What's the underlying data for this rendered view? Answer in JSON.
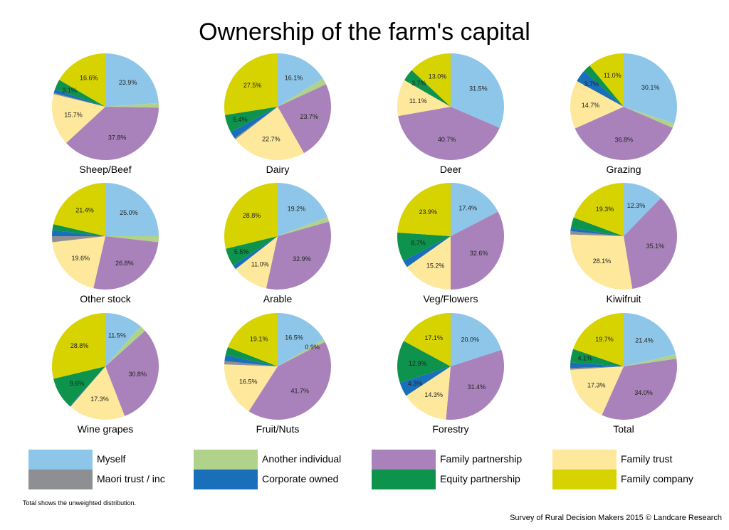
{
  "title": "Ownership of the farm's capital",
  "footnote": "Total shows the unweighted distribution.",
  "source": "Survey of Rural Decision Makers 2015 © Landcare Research",
  "legend": [
    {
      "label": "Myself",
      "color": "#8ec6ea"
    },
    {
      "label": "Another individual",
      "color": "#b1d28a"
    },
    {
      "label": "Family partnership",
      "color": "#a982bb"
    },
    {
      "label": "Family trust",
      "color": "#fde89b"
    },
    {
      "label": "Maori trust / inc",
      "color": "#8d8f92"
    },
    {
      "label": "Corporate owned",
      "color": "#1a6fba"
    },
    {
      "label": "Equity partnership",
      "color": "#0d934b"
    },
    {
      "label": "Family company",
      "color": "#d7d300"
    }
  ],
  "chart_data": [
    {
      "type": "pie",
      "title": "Sheep/Beef",
      "categories": [
        "Myself",
        "Another individual",
        "Family partnership",
        "Family trust",
        "Maori trust / inc",
        "Corporate owned",
        "Equity partnership",
        "Family company"
      ],
      "values": [
        23.9,
        1.4,
        37.8,
        15.7,
        0.4,
        1.1,
        3.1,
        16.6
      ],
      "data_labels": [
        "23.9%",
        "",
        "37.8%",
        "15.7%",
        "",
        "",
        "3.1%",
        "16.6%"
      ]
    },
    {
      "type": "pie",
      "title": "Dairy",
      "categories": [
        "Myself",
        "Another individual",
        "Family partnership",
        "Family trust",
        "Maori trust / inc",
        "Corporate owned",
        "Equity partnership",
        "Family company"
      ],
      "values": [
        16.1,
        2.0,
        23.7,
        22.7,
        0.4,
        2.2,
        5.4,
        27.5
      ],
      "data_labels": [
        "16.1%",
        "",
        "23.7%",
        "22.7%",
        "",
        "",
        "5.4%",
        "27.5%"
      ]
    },
    {
      "type": "pie",
      "title": "Deer",
      "categories": [
        "Myself",
        "Another individual",
        "Family partnership",
        "Family trust",
        "Maori trust / inc",
        "Corporate owned",
        "Equity partnership",
        "Family company"
      ],
      "values": [
        31.5,
        0.0,
        40.7,
        11.1,
        0.0,
        0.0,
        3.7,
        13.0
      ],
      "data_labels": [
        "31.5%",
        "",
        "40.7%",
        "11.1%",
        "",
        "",
        "3.7%",
        "13.0%"
      ]
    },
    {
      "type": "pie",
      "title": "Grazing",
      "categories": [
        "Myself",
        "Another individual",
        "Family partnership",
        "Family trust",
        "Maori trust / inc",
        "Corporate owned",
        "Equity partnership",
        "Family company"
      ],
      "values": [
        30.1,
        1.4,
        36.8,
        14.7,
        0.0,
        3.7,
        2.3,
        11.0
      ],
      "data_labels": [
        "30.1%",
        "",
        "36.8%",
        "14.7%",
        "",
        "3.7%",
        "",
        "11.0%"
      ]
    },
    {
      "type": "pie",
      "title": "Other stock",
      "categories": [
        "Myself",
        "Another individual",
        "Family partnership",
        "Family trust",
        "Maori trust / inc",
        "Corporate owned",
        "Equity partnership",
        "Family company"
      ],
      "values": [
        25.0,
        1.8,
        26.8,
        19.6,
        1.8,
        1.8,
        1.8,
        21.4
      ],
      "data_labels": [
        "25.0%",
        "",
        "26.8%",
        "19.6%",
        "",
        "",
        "",
        "21.4%"
      ]
    },
    {
      "type": "pie",
      "title": "Arable",
      "categories": [
        "Myself",
        "Another individual",
        "Family partnership",
        "Family trust",
        "Maori trust / inc",
        "Corporate owned",
        "Equity partnership",
        "Family company"
      ],
      "values": [
        19.2,
        1.4,
        32.9,
        11.0,
        0.0,
        1.3,
        5.5,
        28.8
      ],
      "data_labels": [
        "19.2%",
        "",
        "32.9%",
        "11.0%",
        "",
        "",
        "5.5%",
        "28.8%"
      ]
    },
    {
      "type": "pie",
      "title": "Veg/Flowers",
      "categories": [
        "Myself",
        "Another individual",
        "Family partnership",
        "Family trust",
        "Maori trust / inc",
        "Corporate owned",
        "Equity partnership",
        "Family company"
      ],
      "values": [
        17.4,
        0.0,
        32.6,
        15.2,
        0.0,
        2.2,
        8.7,
        23.9
      ],
      "data_labels": [
        "17.4%",
        "",
        "32.6%",
        "15.2%",
        "",
        "",
        "8.7%",
        "23.9%"
      ]
    },
    {
      "type": "pie",
      "title": "Kiwifruit",
      "categories": [
        "Myself",
        "Another individual",
        "Family partnership",
        "Family trust",
        "Maori trust / inc",
        "Corporate owned",
        "Equity partnership",
        "Family company"
      ],
      "values": [
        12.3,
        0.0,
        35.1,
        28.1,
        1.0,
        1.0,
        3.2,
        19.3
      ],
      "data_labels": [
        "12.3%",
        "",
        "35.1%",
        "28.1%",
        "",
        "",
        "",
        "19.3%"
      ]
    },
    {
      "type": "pie",
      "title": "Wine grapes",
      "categories": [
        "Myself",
        "Another individual",
        "Family partnership",
        "Family trust",
        "Maori trust / inc",
        "Corporate owned",
        "Equity partnership",
        "Family company"
      ],
      "values": [
        11.5,
        1.9,
        30.8,
        17.3,
        0.0,
        0.3,
        9.6,
        28.8
      ],
      "data_labels": [
        "11.5%",
        "",
        "30.8%",
        "17.3%",
        "",
        "",
        "9.6%",
        "28.8%"
      ]
    },
    {
      "type": "pie",
      "title": "Fruit/Nuts",
      "categories": [
        "Myself",
        "Another individual",
        "Family partnership",
        "Family trust",
        "Maori trust / inc",
        "Corporate owned",
        "Equity partnership",
        "Family company"
      ],
      "values": [
        16.5,
        0.9,
        41.7,
        16.5,
        1.0,
        1.8,
        2.5,
        19.1
      ],
      "data_labels": [
        "16.5%",
        "0.9%",
        "41.7%",
        "16.5%",
        "",
        "",
        "",
        "19.1%"
      ]
    },
    {
      "type": "pie",
      "title": "Forestry",
      "categories": [
        "Myself",
        "Another individual",
        "Family partnership",
        "Family trust",
        "Maori trust / inc",
        "Corporate owned",
        "Equity partnership",
        "Family company"
      ],
      "values": [
        20.0,
        0.0,
        31.4,
        14.3,
        0.0,
        4.3,
        12.9,
        17.1
      ],
      "data_labels": [
        "20.0%",
        "",
        "31.4%",
        "14.3%",
        "",
        "4.3%",
        "12.9%",
        "17.1%"
      ]
    },
    {
      "type": "pie",
      "title": "Total",
      "categories": [
        "Myself",
        "Another individual",
        "Family partnership",
        "Family trust",
        "Maori trust / inc",
        "Corporate owned",
        "Equity partnership",
        "Family company"
      ],
      "values": [
        21.4,
        1.3,
        34.0,
        17.3,
        0.5,
        1.7,
        4.1,
        19.7
      ],
      "data_labels": [
        "21.4%",
        "",
        "34.0%",
        "17.3%",
        "",
        "",
        "4.1%",
        "19.7%"
      ]
    }
  ]
}
